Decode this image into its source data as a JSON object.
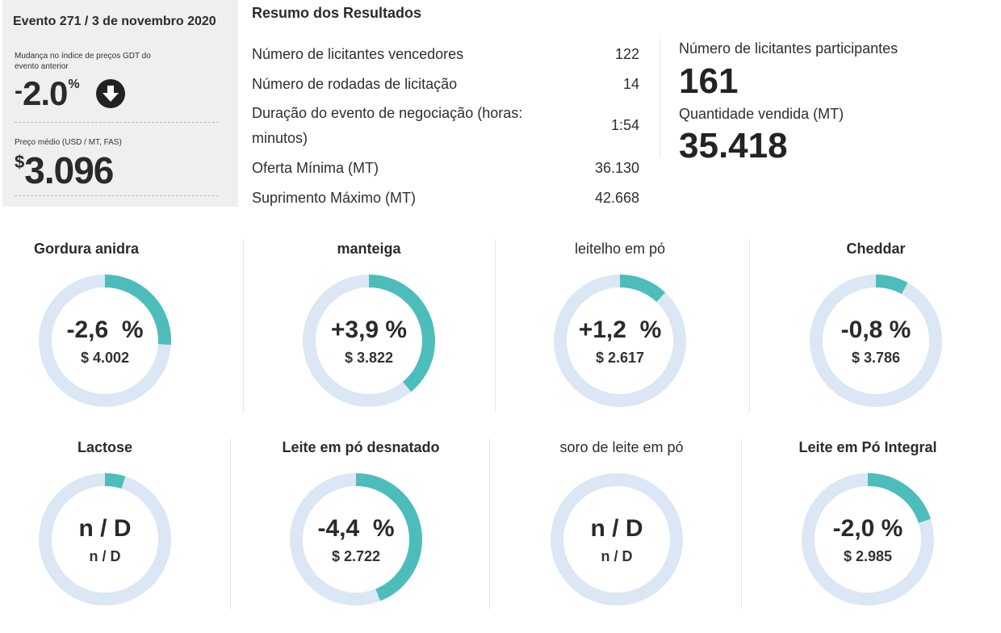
{
  "event": {
    "title": "Evento 271 / 3 de novembro 2020",
    "gdt_label": "Mudança no índice de preços GDT do evento anterior",
    "gdt_sign": "-",
    "gdt_value": "2.0",
    "gdt_unit": "%",
    "gdt_direction_icon": "arrow-down-circle-icon",
    "price_label": "Preço médio (USD / MT, FAS)",
    "price_currency": "$",
    "price_value": "3.096"
  },
  "summary": {
    "title": "Resumo dos Resultados",
    "rows": [
      {
        "label": "Número de licitantes vencedores",
        "value": "122"
      },
      {
        "label": "Número de rodadas de licitação",
        "value": "14"
      },
      {
        "label": "Duração do evento de negociação (horas: minutos)",
        "value": "1:54"
      },
      {
        "label": "Oferta Mínima (MT)",
        "value": "36.130"
      },
      {
        "label": "Suprimento Máximo (MT)",
        "value": "42.668"
      }
    ],
    "participants_label": "Número de licitantes participantes",
    "participants_value": "161",
    "quantity_label": "Quantidade vendida (MT)",
    "quantity_value": "35.418"
  },
  "colors": {
    "ring_track": "#dce7f5",
    "ring_fill": "#4dbdbb",
    "panel_bg": "#efefef"
  },
  "products": [
    {
      "name": "Gordura anidra",
      "change": "-2,6  %",
      "price": "$ 4.002",
      "fill_percent": 2.6
    },
    {
      "name": "manteiga",
      "change": "+3,9 %",
      "price": "$ 3.822",
      "fill_percent": 3.9
    },
    {
      "name": "leitelho em pó",
      "change": "+1,2  %",
      "price": "$ 2.617",
      "fill_percent": 1.2
    },
    {
      "name": "Cheddar",
      "change": "-0,8 %",
      "price": "$ 3.786",
      "fill_percent": 0.8
    },
    {
      "name": "Lactose",
      "change": "n / D",
      "price": "n / D",
      "fill_percent": 0.5
    },
    {
      "name": "Leite em pó desnatado",
      "change": "-4,4  %",
      "price": "$ 2.722",
      "fill_percent": 4.4
    },
    {
      "name": "soro de leite em pó",
      "change": "n / D",
      "price": "n / D",
      "fill_percent": 0
    },
    {
      "name": "Leite em Pó Integral",
      "change": "-2,0 %",
      "price": "$ 2.985",
      "fill_percent": 2.0
    }
  ]
}
